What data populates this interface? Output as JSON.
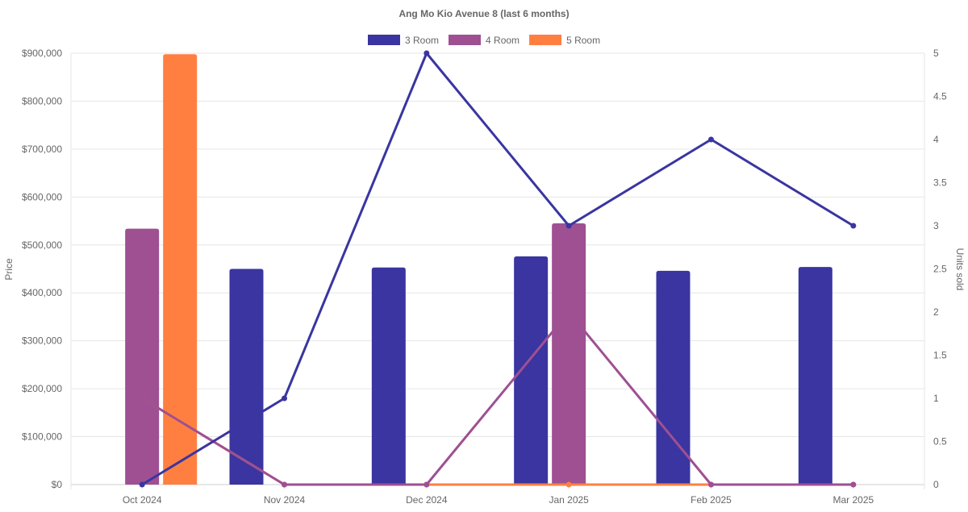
{
  "chart_data": {
    "type": "bar+line",
    "title": "Ang Mo Kio Avenue 8 (last 6 months)",
    "categories": [
      "Oct 2024",
      "Nov 2024",
      "Dec 2024",
      "Jan 2025",
      "Feb 2025",
      "Mar 2025"
    ],
    "ylabel": "Price",
    "y2label": "Units sold",
    "ylim": [
      0,
      900000
    ],
    "y2lim": [
      0,
      5
    ],
    "yticks": [
      "$0",
      "$100,000",
      "$200,000",
      "$300,000",
      "$400,000",
      "$500,000",
      "$600,000",
      "$700,000",
      "$800,000",
      "$900,000"
    ],
    "y2ticks": [
      "0",
      "0.5",
      "1",
      "1.5",
      "2",
      "2.5",
      "3",
      "3.5",
      "4",
      "4.5",
      "5"
    ],
    "legend_position": "top",
    "grid": true,
    "series": [
      {
        "name": "3 Room",
        "color": "#3a35a0",
        "price": [
          null,
          450000,
          453000,
          476000,
          446000,
          454000
        ],
        "units": [
          0,
          1,
          5,
          3,
          4,
          3
        ]
      },
      {
        "name": "4 Room",
        "color": "#9e5092",
        "price": [
          534000,
          null,
          null,
          545000,
          null,
          null
        ],
        "units": [
          1,
          0,
          0,
          2,
          0,
          0
        ]
      },
      {
        "name": "5 Room",
        "color": "#ff7f41",
        "price": [
          898000,
          null,
          null,
          null,
          null,
          null
        ],
        "units": [
          1,
          0,
          0,
          0,
          0,
          0
        ]
      }
    ]
  }
}
